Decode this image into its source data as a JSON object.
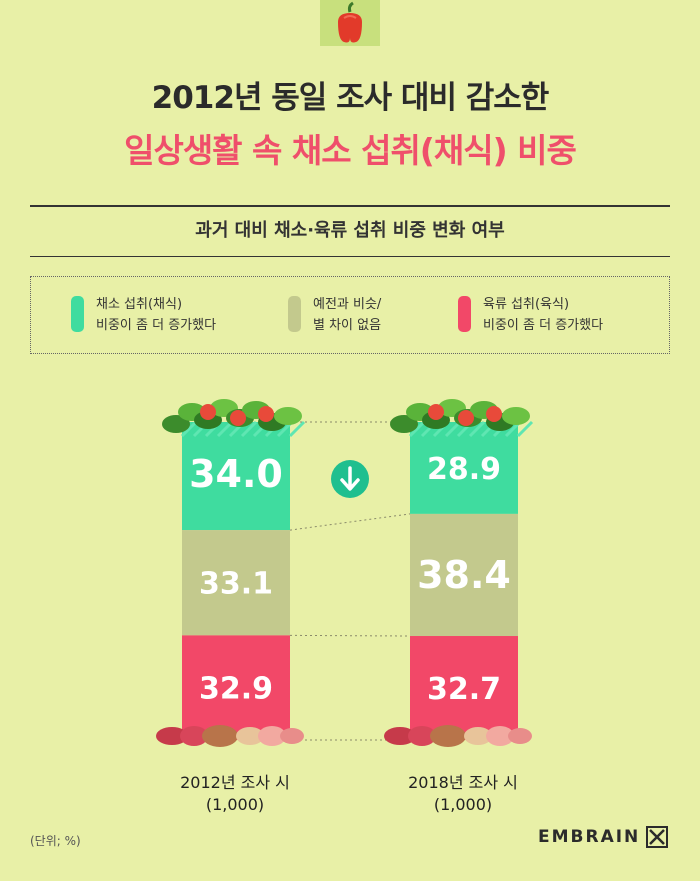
{
  "header": {
    "title_line1": "2012년 동일 조사 대비 감소한",
    "title_line2": "일상생활 속 채소 섭취(채식) 비중"
  },
  "subtitle": "과거 대비 채소·육류 섭취 비중 변화 여부",
  "legend": [
    {
      "line1": "채소 섭취(채식)",
      "line2": "비중이 좀 더 증가했다",
      "color": "#3fdc9f"
    },
    {
      "line1": "예전과 비슷/",
      "line2": "별 차이 없음",
      "color": "#c3c98d"
    },
    {
      "line1": "육류 섭취(육식)",
      "line2": "비중이 좀 더 증가했다",
      "color": "#f24868"
    }
  ],
  "chart_data": {
    "type": "bar",
    "stacked": true,
    "unit": "(단위; %)",
    "categories": [
      "2012년 조사 시",
      "2018년 조사 시"
    ],
    "sample_sizes": [
      "(1,000)",
      "(1,000)"
    ],
    "series": [
      {
        "name": "채소 섭취(채식) 비중이 좀 더 증가했다",
        "color": "#3fdc9f",
        "values": [
          34.0,
          28.9
        ]
      },
      {
        "name": "예전과 비슷/ 별 차이 없음",
        "color": "#c3c98d",
        "values": [
          33.1,
          38.4
        ]
      },
      {
        "name": "육류 섭취(육식) 비중이 좀 더 증가했다",
        "color": "#f24868",
        "values": [
          32.9,
          32.7
        ]
      }
    ],
    "value_labels": [
      [
        "34.0",
        "33.1",
        "32.9"
      ],
      [
        "28.9",
        "38.4",
        "32.7"
      ]
    ],
    "annotation": "down-arrow-icon"
  },
  "footer": {
    "unit": "(단위; %)",
    "brand": "EMBRAIN"
  }
}
